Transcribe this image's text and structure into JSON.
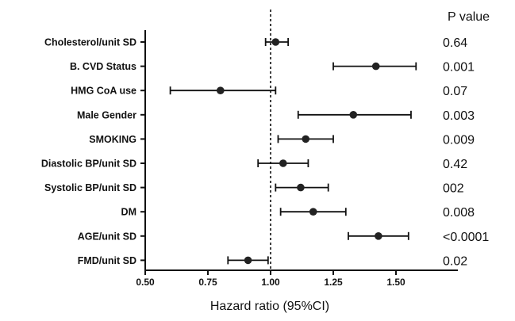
{
  "chart_data": {
    "type": "forest",
    "xlabel": "Hazard ratio (95%CI)",
    "xlim": [
      0.5,
      1.75
    ],
    "xticks": [
      "0.50",
      "0.75",
      "1.00",
      "1.25",
      "1.50"
    ],
    "xtick_values": [
      0.5,
      0.75,
      1.0,
      1.25,
      1.5
    ],
    "reference_line": 1.0,
    "p_header": "P value",
    "rows": [
      {
        "label": "Cholesterol/unit SD",
        "hr": 1.02,
        "lo": 0.98,
        "hi": 1.07,
        "p": "0.64"
      },
      {
        "label": "B. CVD Status",
        "hr": 1.42,
        "lo": 1.25,
        "hi": 1.58,
        "p": "0.001"
      },
      {
        "label": "HMG CoA use",
        "hr": 0.8,
        "lo": 0.6,
        "hi": 1.02,
        "p": "0.07"
      },
      {
        "label": "Male Gender",
        "hr": 1.33,
        "lo": 1.11,
        "hi": 1.56,
        "p": "0.003"
      },
      {
        "label": "SMOKING",
        "hr": 1.14,
        "lo": 1.03,
        "hi": 1.25,
        "p": "0.009"
      },
      {
        "label": "Diastolic BP/unit SD",
        "hr": 1.05,
        "lo": 0.95,
        "hi": 1.15,
        "p": "0.42"
      },
      {
        "label": "Systolic BP/unit SD",
        "hr": 1.12,
        "lo": 1.02,
        "hi": 1.23,
        "p": "002"
      },
      {
        "label": "DM",
        "hr": 1.17,
        "lo": 1.04,
        "hi": 1.3,
        "p": "0.008"
      },
      {
        "label": "AGE/unit SD",
        "hr": 1.43,
        "lo": 1.31,
        "hi": 1.55,
        "p": "<0.0001"
      },
      {
        "label": "FMD/unit SD",
        "hr": 0.91,
        "lo": 0.83,
        "hi": 0.99,
        "p": "0.02"
      }
    ]
  }
}
